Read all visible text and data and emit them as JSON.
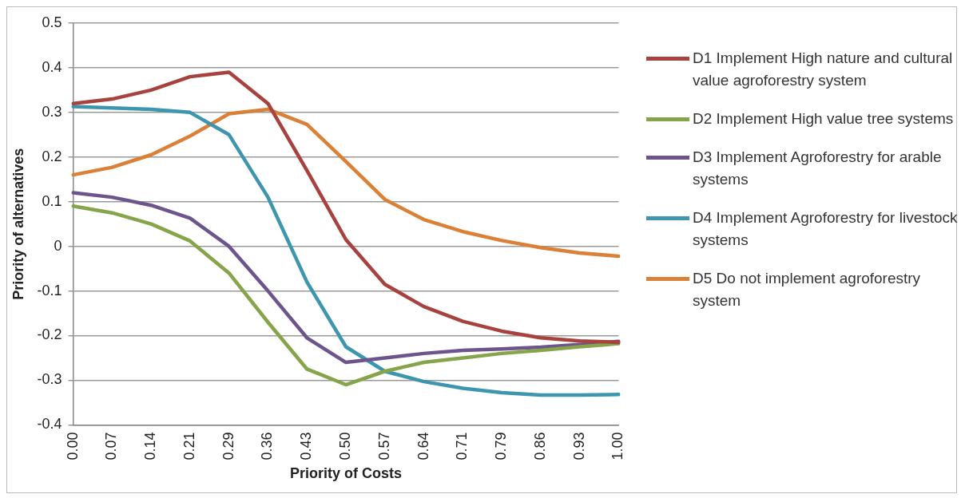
{
  "chart_data": {
    "type": "line",
    "xlabel": "Priority of Costs",
    "ylabel": "Priority of alternatives",
    "categories": [
      "0.00",
      "0.07",
      "0.14",
      "0.21",
      "0.29",
      "0.36",
      "0.43",
      "0.50",
      "0.57",
      "0.64",
      "0.71",
      "0.79",
      "0.86",
      "0.93",
      "1.00"
    ],
    "series": [
      {
        "name": "D1 Implement High nature and cultural value agroforestry system",
        "color": "#a8423f",
        "values": [
          0.32,
          0.33,
          0.35,
          0.38,
          0.39,
          0.32,
          0.17,
          0.015,
          -0.085,
          -0.135,
          -0.168,
          -0.19,
          -0.205,
          -0.212,
          -0.215
        ]
      },
      {
        "name": "D2 Implement High value tree systems",
        "color": "#86a44a",
        "values": [
          0.09,
          0.075,
          0.05,
          0.012,
          -0.06,
          -0.17,
          -0.275,
          -0.31,
          -0.28,
          -0.26,
          -0.25,
          -0.24,
          -0.233,
          -0.225,
          -0.218
        ]
      },
      {
        "name": "D3 Implement Agroforestry for arable systems",
        "color": "#6e548d",
        "values": [
          0.12,
          0.11,
          0.092,
          0.063,
          0.0,
          -0.1,
          -0.205,
          -0.26,
          -0.25,
          -0.24,
          -0.233,
          -0.23,
          -0.226,
          -0.22,
          -0.213
        ]
      },
      {
        "name": "D4 Implement Agroforestry for livestock systems",
        "color": "#3d96ae",
        "values": [
          0.313,
          0.31,
          0.307,
          0.3,
          0.25,
          0.11,
          -0.08,
          -0.225,
          -0.28,
          -0.303,
          -0.318,
          -0.328,
          -0.333,
          -0.333,
          -0.332
        ]
      },
      {
        "name": "D5 Do not implement agroforestry system",
        "color": "#da8137",
        "values": [
          0.16,
          0.177,
          0.205,
          0.247,
          0.297,
          0.307,
          0.273,
          0.19,
          0.105,
          0.06,
          0.033,
          0.013,
          -0.003,
          -0.015,
          -0.022
        ]
      }
    ],
    "ylim": [
      -0.4,
      0.5
    ],
    "yticks": [
      -0.4,
      -0.3,
      -0.2,
      -0.1,
      0,
      0.1,
      0.2,
      0.3,
      0.4,
      0.5
    ],
    "grid": "y",
    "legend": "right",
    "marker": "none",
    "line_style": "solid"
  }
}
